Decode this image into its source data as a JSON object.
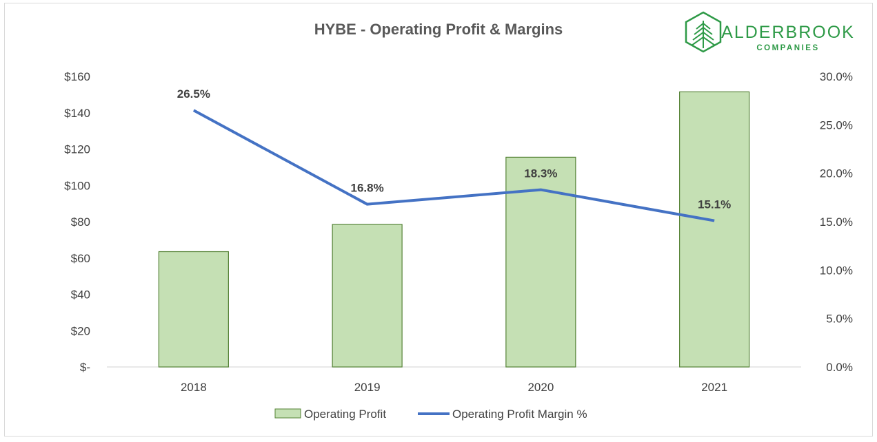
{
  "chart_data": {
    "type": "bar",
    "title": "HYBE - Operating Profit & Margins",
    "categories": [
      "2018",
      "2019",
      "2020",
      "2021"
    ],
    "series": [
      {
        "name": "Operating Profit",
        "type": "bar",
        "axis": "left",
        "values": [
          63.5,
          78.5,
          115.5,
          151.5
        ],
        "color": "#c5e0b4",
        "border_color": "#548235"
      },
      {
        "name": "Operating Profit Margin %",
        "type": "line",
        "axis": "right",
        "values": [
          26.5,
          16.8,
          18.3,
          15.1
        ],
        "labels": [
          "26.5%",
          "16.8%",
          "18.3%",
          "15.1%"
        ],
        "color": "#4472c4"
      }
    ],
    "y_left": {
      "ylim": [
        0,
        160
      ],
      "ticks": [
        0,
        20,
        40,
        60,
        80,
        100,
        120,
        140,
        160
      ],
      "tick_labels": [
        "$-",
        "$20",
        "$40",
        "$60",
        "$80",
        "$100",
        "$120",
        "$140",
        "$160"
      ]
    },
    "y_right": {
      "ylim": [
        0,
        30
      ],
      "ticks": [
        0,
        5,
        10,
        15,
        20,
        25,
        30
      ],
      "tick_labels": [
        "0.0%",
        "5.0%",
        "10.0%",
        "15.0%",
        "20.0%",
        "25.0%",
        "30.0%"
      ]
    },
    "grid": false,
    "legend": {
      "position": "bottom",
      "entries": [
        "Operating Profit",
        "Operating Profit Margin %"
      ]
    }
  },
  "logo": {
    "name": "ALDERBROOK",
    "tagline": "COMPANIES",
    "color": "#2e9a47"
  }
}
